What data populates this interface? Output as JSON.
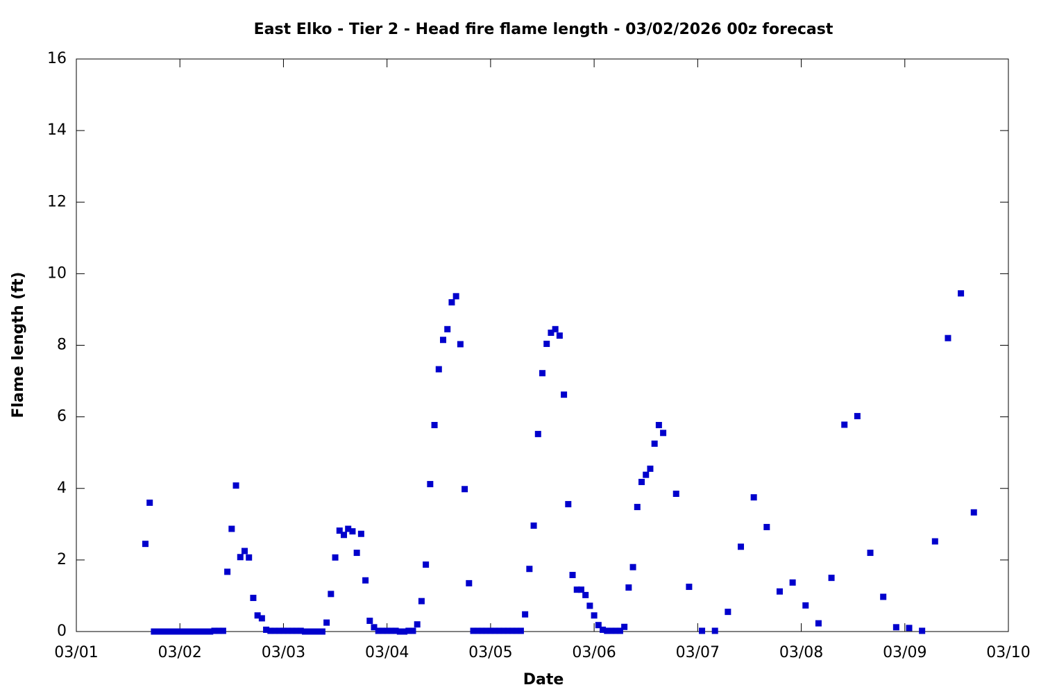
{
  "chart_data": {
    "type": "scatter",
    "title": "East Elko - Tier 2 - Head fire flame length - 03/02/2026 00z forecast",
    "x_label": "Date",
    "y_label": "Flame length (ft)",
    "series": [
      {
        "name": "Head fire flame length",
        "color": "#0000cc",
        "x": [
          16,
          17,
          18,
          19,
          20,
          21,
          22,
          23,
          24,
          25,
          26,
          27,
          28,
          29,
          30,
          31,
          32,
          33,
          34,
          35,
          36,
          37,
          38,
          39,
          40,
          41,
          42,
          43,
          44,
          45,
          46,
          47,
          48,
          49,
          50,
          51,
          52,
          53,
          54,
          55,
          56,
          57,
          58,
          59,
          60,
          61,
          62,
          63,
          64,
          65,
          66,
          67,
          68,
          69,
          70,
          71,
          72,
          73,
          74,
          75,
          76,
          77,
          78,
          79,
          80,
          81,
          82,
          83,
          84,
          85,
          86,
          87,
          88,
          89,
          90,
          91,
          92,
          93,
          94,
          95,
          96,
          97,
          98,
          99,
          100,
          101,
          102,
          103,
          104,
          105,
          106,
          107,
          108,
          109,
          110,
          111,
          112,
          113,
          114,
          115,
          116,
          117,
          118,
          119,
          120,
          121,
          122,
          123,
          124,
          125,
          126,
          127,
          128,
          129,
          130,
          131,
          132,
          133,
          134,
          135,
          136,
          139,
          142,
          145,
          148,
          151,
          154,
          157,
          160,
          163,
          166,
          169,
          172,
          175,
          178,
          181,
          184,
          187,
          190,
          193,
          196,
          199,
          202,
          205,
          208
        ],
        "values": [
          2.45,
          3.6,
          0,
          0,
          0,
          0,
          0,
          0,
          0,
          0,
          0,
          0,
          0,
          0,
          0,
          0,
          0.02,
          0.02,
          0.02,
          1.67,
          2.87,
          4.08,
          2.08,
          2.25,
          2.07,
          0.94,
          0.45,
          0.37,
          0.05,
          0.02,
          0.02,
          0.02,
          0.02,
          0.02,
          0.02,
          0.02,
          0.02,
          0,
          0,
          0,
          0,
          0,
          0.25,
          1.05,
          2.07,
          2.82,
          2.7,
          2.87,
          2.8,
          2.2,
          2.73,
          1.43,
          0.3,
          0.12,
          0.02,
          0.02,
          0.02,
          0.02,
          0.02,
          0,
          0,
          0.02,
          0.02,
          0.2,
          0.85,
          1.87,
          4.12,
          5.77,
          7.33,
          8.15,
          8.45,
          9.2,
          9.37,
          8.03,
          3.98,
          1.35,
          0.02,
          0.02,
          0.02,
          0.02,
          0.02,
          0.02,
          0.02,
          0.02,
          0.02,
          0.02,
          0.02,
          0.02,
          0.48,
          1.75,
          2.96,
          5.52,
          7.22,
          8.04,
          8.35,
          8.45,
          8.27,
          6.62,
          3.56,
          1.58,
          1.17,
          1.17,
          1.02,
          0.72,
          0.45,
          0.18,
          0.05,
          0.02,
          0.02,
          0.02,
          0.02,
          0.13,
          1.23,
          1.8,
          3.48,
          4.18,
          4.38,
          4.55,
          5.25,
          5.77,
          5.55,
          3.85,
          1.25,
          0.02,
          0.02,
          0.55,
          2.37,
          3.75,
          2.92,
          1.12,
          1.37,
          0.73,
          0.23,
          1.5,
          5.78,
          6.02,
          2.2,
          0.97,
          0.12,
          0.1,
          0.02,
          2.52,
          8.2,
          9.45,
          3.33
        ]
      }
    ],
    "xlim": [
      0,
      216
    ],
    "xticks": [
      {
        "value": 0,
        "label": "03/01"
      },
      {
        "value": 24,
        "label": "03/02"
      },
      {
        "value": 48,
        "label": "03/03"
      },
      {
        "value": 72,
        "label": "03/04"
      },
      {
        "value": 96,
        "label": "03/05"
      },
      {
        "value": 120,
        "label": "03/06"
      },
      {
        "value": 144,
        "label": "03/07"
      },
      {
        "value": 168,
        "label": "03/08"
      },
      {
        "value": 192,
        "label": "03/09"
      },
      {
        "value": 216,
        "label": "03/10"
      }
    ],
    "ylim": [
      0,
      16
    ],
    "yticks": [
      0,
      2,
      4,
      6,
      8,
      10,
      12,
      14,
      16
    ],
    "grid": false
  }
}
